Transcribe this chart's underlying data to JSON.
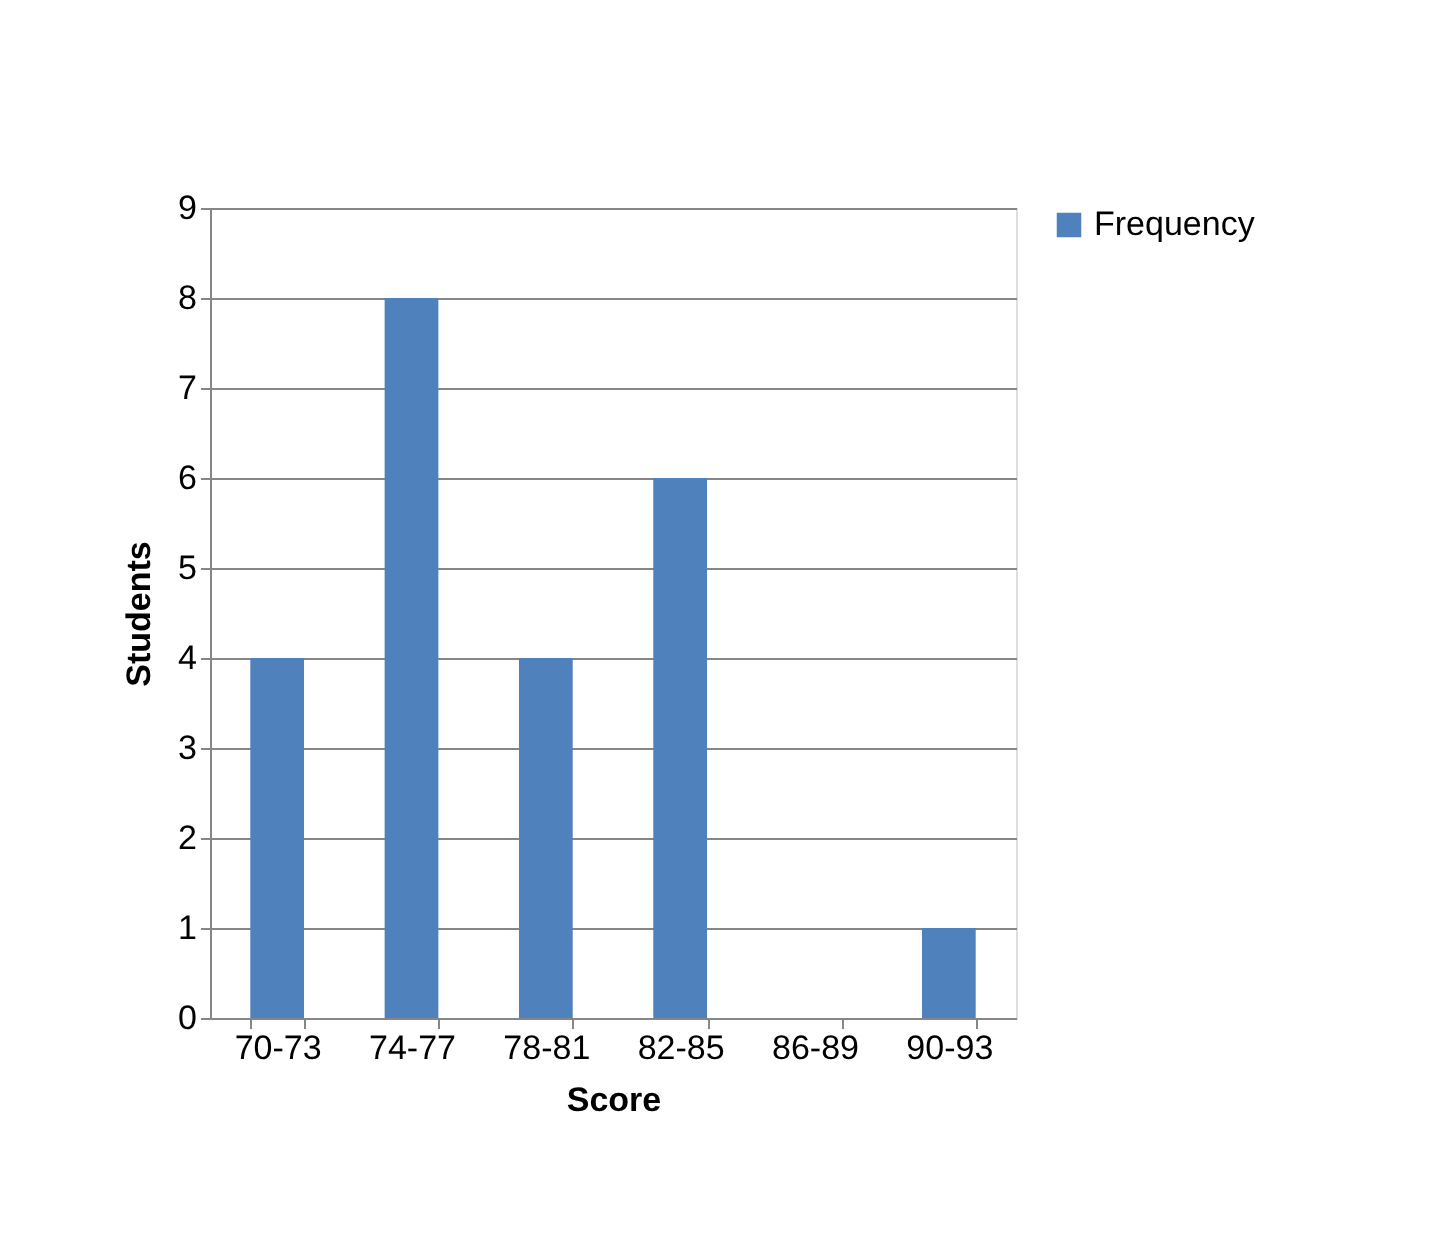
{
  "chart_data": {
    "type": "bar",
    "xlabel": "Score",
    "ylabel": "Students",
    "categories": [
      "70-73",
      "74-77",
      "78-81",
      "82-85",
      "86-89",
      "90-93"
    ],
    "series": [
      {
        "name": "Frequency",
        "color": "#4f81bd",
        "values": [
          4,
          8,
          4,
          6,
          0,
          1
        ]
      }
    ],
    "ylim": [
      0,
      9
    ],
    "yticks": [
      0,
      1,
      2,
      3,
      4,
      5,
      6,
      7,
      8,
      9
    ],
    "grid": "y",
    "legend": "right"
  }
}
